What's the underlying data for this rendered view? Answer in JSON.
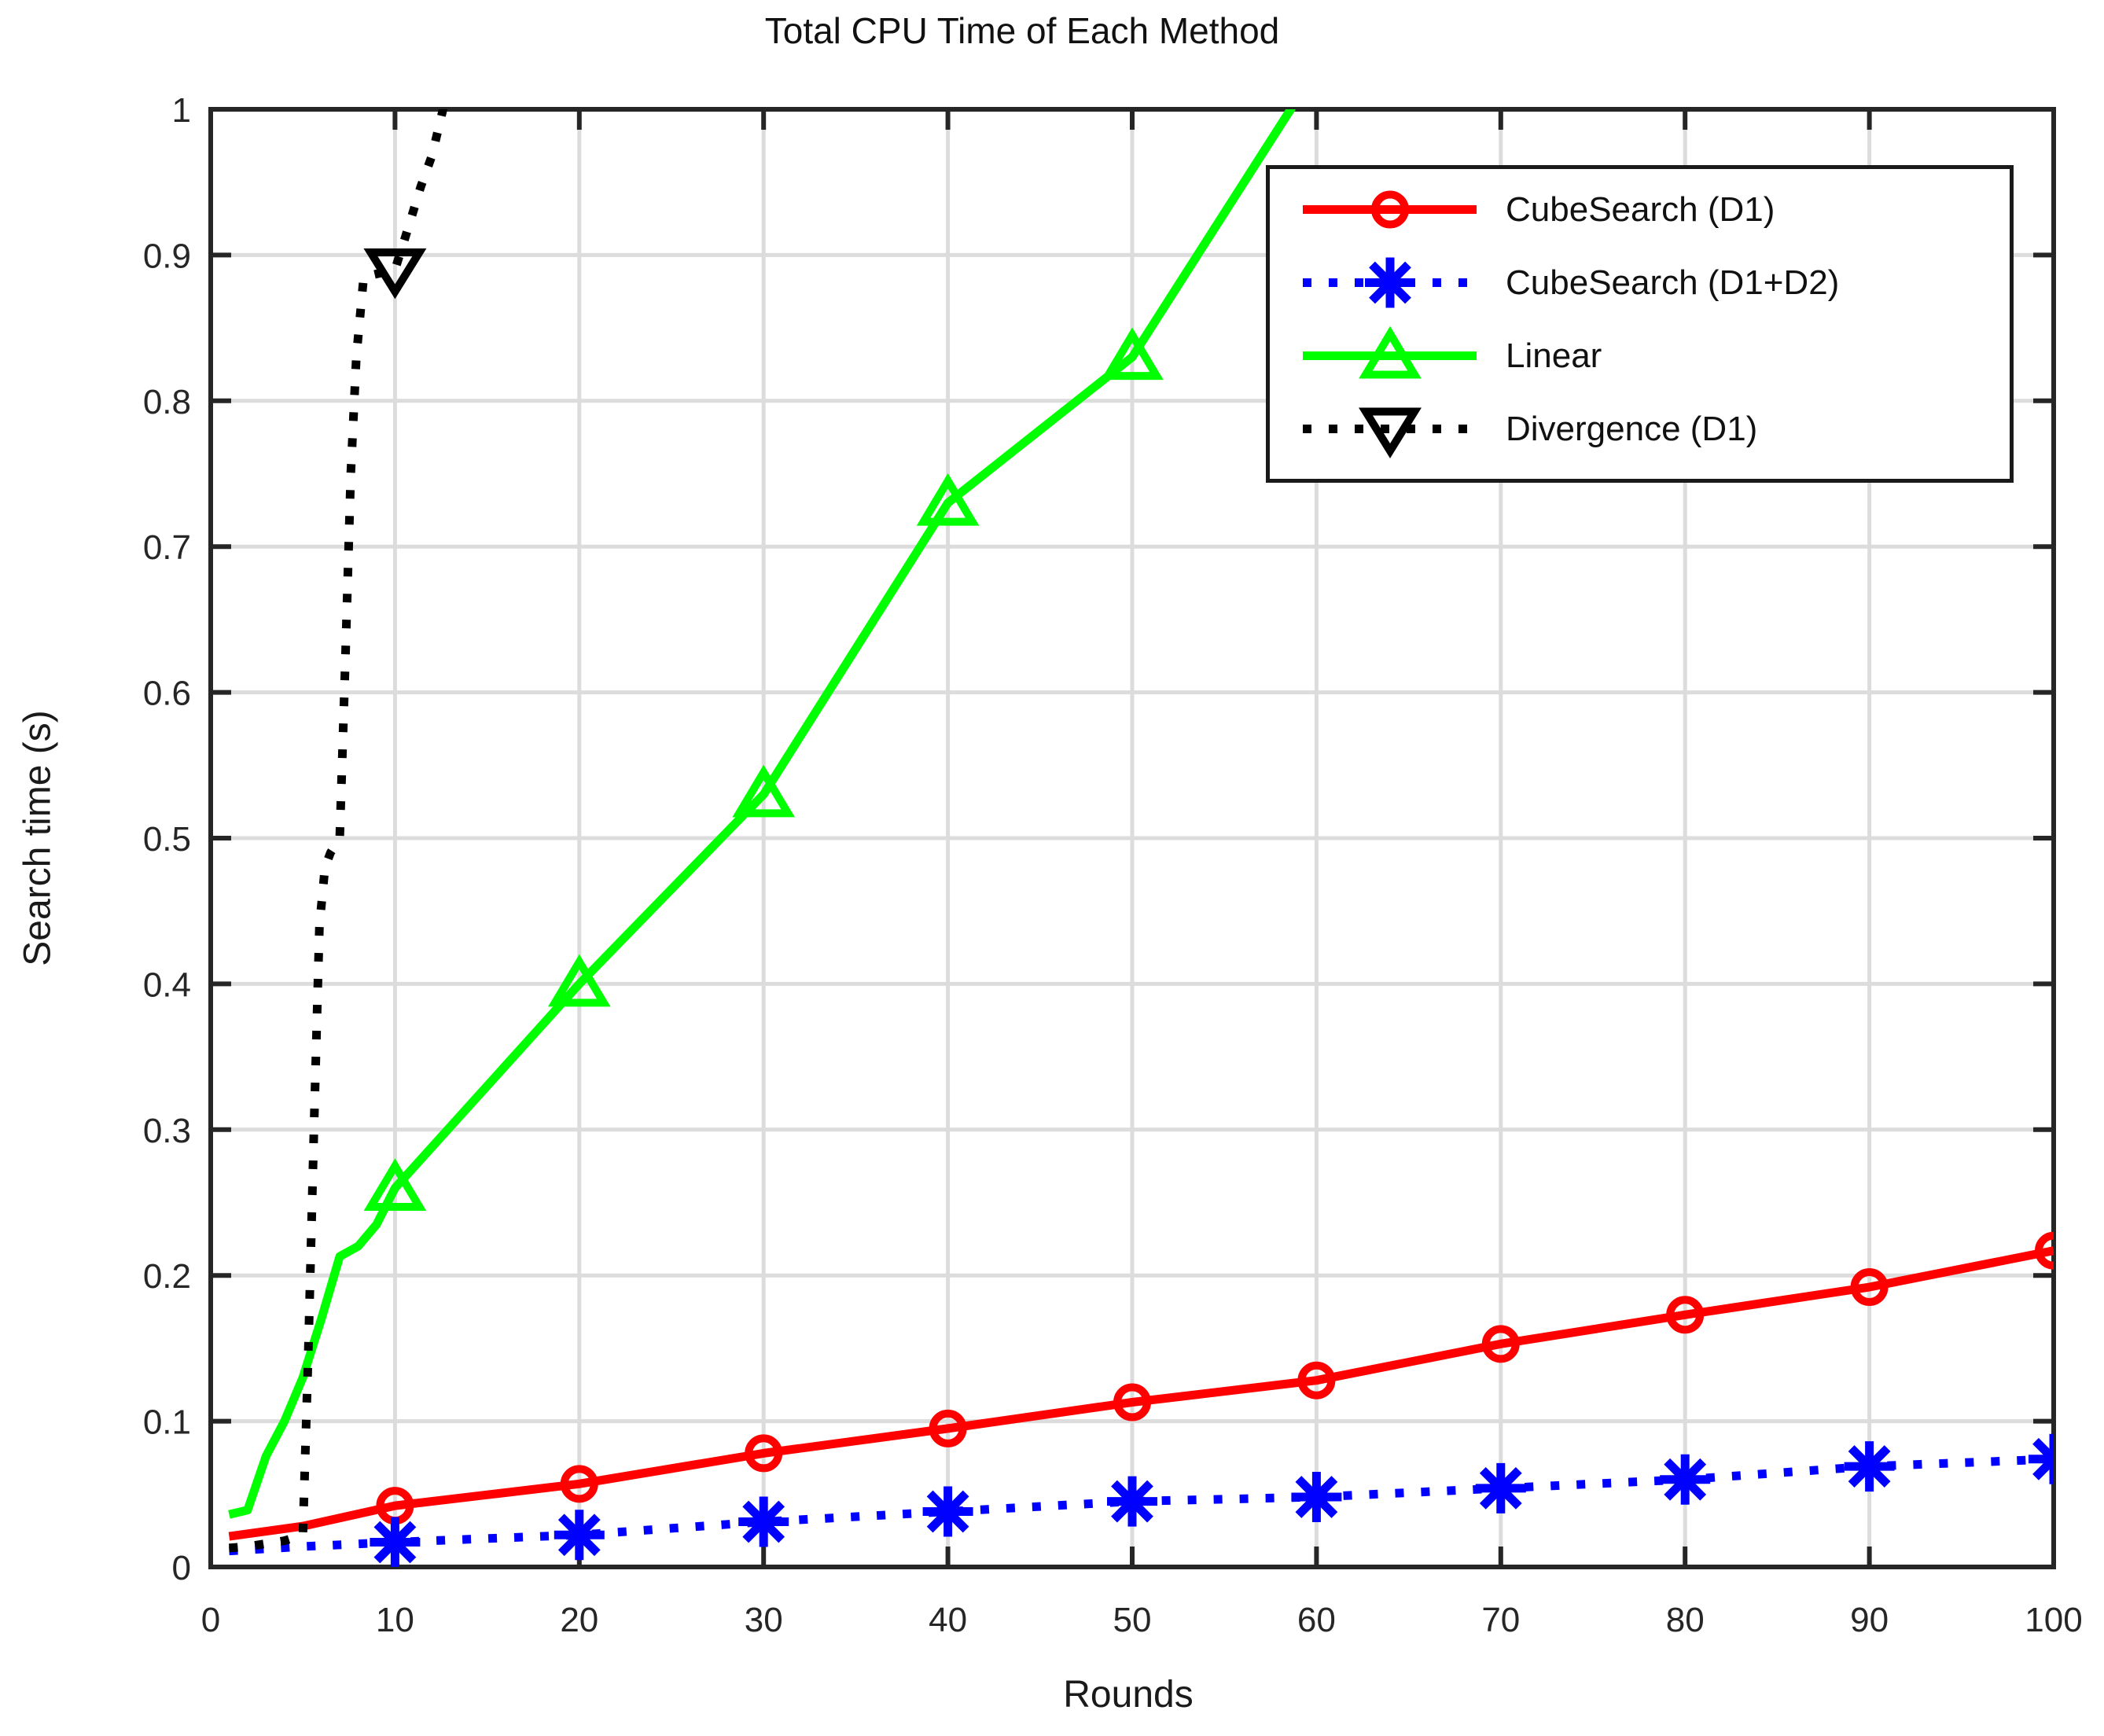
{
  "title": "Total CPU Time of Each Method",
  "xlabel": "Rounds",
  "ylabel": "Search time (s)",
  "colors": {
    "grid": "#dcdcdc",
    "frame": "#262626",
    "tick_text": "#262626",
    "background": "#ffffff",
    "series_red": "#ff0000",
    "series_blue": "#0000ff",
    "series_green": "#00ff00",
    "series_black": "#000000"
  },
  "chart_data": {
    "type": "line",
    "title": "Total CPU Time of Each Method",
    "xlabel": "Rounds",
    "ylabel": "Search time (s)",
    "xlim": [
      0,
      100
    ],
    "ylim": [
      0,
      1
    ],
    "x_ticks": [
      0,
      10,
      20,
      30,
      40,
      50,
      60,
      70,
      80,
      90,
      100
    ],
    "x_tick_labels": [
      "0",
      "10",
      "20",
      "30",
      "40",
      "50",
      "60",
      "70",
      "80",
      "90",
      "100"
    ],
    "y_ticks": [
      0,
      0.1,
      0.2,
      0.3,
      0.4,
      0.5,
      0.6,
      0.7,
      0.8,
      0.9,
      1
    ],
    "y_tick_labels": [
      "0",
      "0.1",
      "0.2",
      "0.3",
      "0.4",
      "0.5",
      "0.6",
      "0.7",
      "0.8",
      "0.9",
      "1"
    ],
    "grid": true,
    "legend_position": "upper right inside",
    "series": [
      {
        "name": "CubeSearch (D1)",
        "color": "#ff0000",
        "line_style": "solid",
        "marker": "circle",
        "marker_x": [
          10,
          20,
          30,
          40,
          50,
          60,
          70,
          80,
          90,
          100
        ],
        "marker_y": [
          0.042,
          0.057,
          0.078,
          0.095,
          0.113,
          0.128,
          0.153,
          0.173,
          0.192,
          0.217
        ],
        "line_points": [
          [
            1,
            0.021
          ],
          [
            5,
            0.028
          ],
          [
            10,
            0.042
          ],
          [
            20,
            0.057
          ],
          [
            30,
            0.078
          ],
          [
            40,
            0.095
          ],
          [
            50,
            0.113
          ],
          [
            60,
            0.128
          ],
          [
            70,
            0.153
          ],
          [
            80,
            0.173
          ],
          [
            90,
            0.192
          ],
          [
            100,
            0.217
          ]
        ]
      },
      {
        "name": "CubeSearch (D1+D2)",
        "color": "#0000ff",
        "line_style": "dotted",
        "marker": "asterisk",
        "marker_x": [
          10,
          20,
          30,
          40,
          50,
          60,
          70,
          80,
          90,
          100
        ],
        "marker_y": [
          0.017,
          0.022,
          0.031,
          0.038,
          0.045,
          0.048,
          0.054,
          0.06,
          0.069,
          0.074
        ],
        "line_points": [
          [
            1,
            0.011
          ],
          [
            5,
            0.014
          ],
          [
            10,
            0.017
          ],
          [
            20,
            0.022
          ],
          [
            30,
            0.031
          ],
          [
            40,
            0.038
          ],
          [
            50,
            0.045
          ],
          [
            60,
            0.048
          ],
          [
            70,
            0.054
          ],
          [
            80,
            0.06
          ],
          [
            90,
            0.069
          ],
          [
            100,
            0.074
          ]
        ]
      },
      {
        "name": "Linear",
        "color": "#00ff00",
        "line_style": "solid",
        "marker": "triangle-up",
        "marker_x": [
          10,
          20,
          30,
          40,
          50
        ],
        "marker_y": [
          0.26,
          0.4,
          0.53,
          0.73,
          0.83
        ],
        "line_points": [
          [
            1,
            0.036
          ],
          [
            2,
            0.039
          ],
          [
            3,
            0.076
          ],
          [
            4,
            0.1
          ],
          [
            5,
            0.13
          ],
          [
            6,
            0.17
          ],
          [
            7,
            0.213
          ],
          [
            8,
            0.22
          ],
          [
            9,
            0.235
          ],
          [
            10,
            0.26
          ],
          [
            20,
            0.4
          ],
          [
            30,
            0.53
          ],
          [
            40,
            0.73
          ],
          [
            50,
            0.83
          ],
          [
            58.6,
            1.0
          ],
          [
            60,
            1.03
          ]
        ],
        "note_exits_top_at_x": 58.6
      },
      {
        "name": "Divergence (D1)",
        "color": "#000000",
        "line_style": "dotted",
        "marker": "triangle-down",
        "marker_x": [
          10
        ],
        "marker_y": [
          0.89
        ],
        "line_points": [
          [
            1,
            0.013
          ],
          [
            2,
            0.014
          ],
          [
            3,
            0.016
          ],
          [
            4,
            0.018
          ],
          [
            5,
            0.022
          ],
          [
            5.3,
            0.15
          ],
          [
            5.6,
            0.3
          ],
          [
            5.9,
            0.44
          ],
          [
            6.2,
            0.48
          ],
          [
            6.5,
            0.49
          ],
          [
            7,
            0.5
          ],
          [
            7.3,
            0.62
          ],
          [
            7.6,
            0.75
          ],
          [
            7.9,
            0.83
          ],
          [
            8.3,
            0.885
          ],
          [
            10,
            0.89
          ],
          [
            10.6,
            0.914
          ],
          [
            11.4,
            0.947
          ],
          [
            12,
            0.968
          ],
          [
            12.7,
            1.005
          ]
        ],
        "note_exits_top_at_x": 12.7
      }
    ]
  }
}
